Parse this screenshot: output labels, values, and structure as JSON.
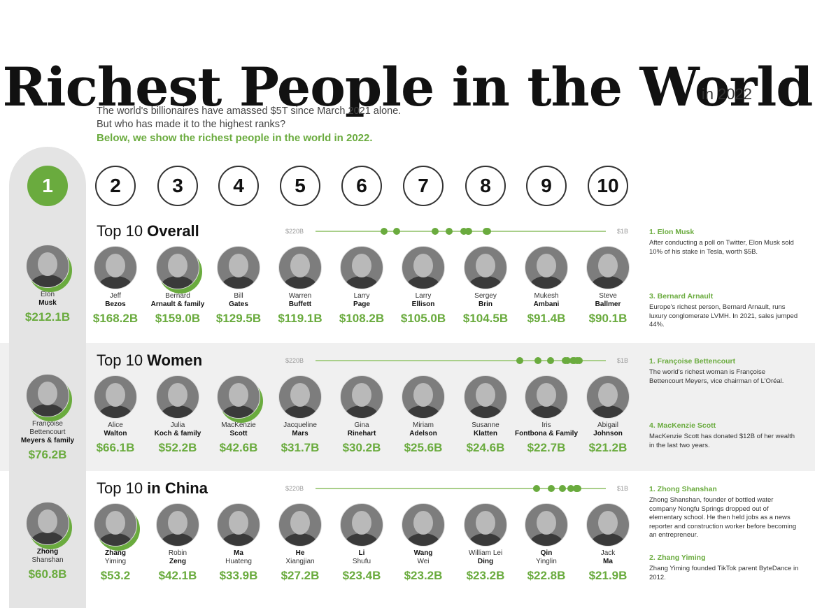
{
  "header": {
    "title": "Richest People in the World",
    "subtitle": "in 2022",
    "intro": [
      "The world's billionaires have amassed $5T since March 2021 alone.",
      "But who has made it to the highest ranks?"
    ],
    "intro_highlight": "Below, we show the richest people in the world in 2022."
  },
  "ranks": [
    "1",
    "2",
    "3",
    "4",
    "5",
    "6",
    "7",
    "8",
    "9",
    "10"
  ],
  "colors": {
    "accent": "#6aab3e",
    "band": "#f0f0f0",
    "pillar": "#e4e4e4",
    "text": "#111111"
  },
  "chart_data": [
    {
      "type": "scatter",
      "title_pre": "Top 10 ",
      "title_bold": "Overall",
      "scale_max_label": "$220B",
      "scale_min_label": "$1B",
      "xlim": [
        220,
        1
      ],
      "people": [
        {
          "first": "Elon",
          "last": "Musk",
          "worth_label": "$212.1B",
          "value": 212.1,
          "highlight": true
        },
        {
          "first": "Jeff",
          "last": "Bezos",
          "worth_label": "$168.2B",
          "value": 168.2
        },
        {
          "first": "Bernard",
          "last": "Arnault & family",
          "worth_label": "$159.0B",
          "value": 159.0,
          "highlight": true
        },
        {
          "first": "Bill",
          "last": "Gates",
          "worth_label": "$129.5B",
          "value": 129.5
        },
        {
          "first": "Warren",
          "last": "Buffett",
          "worth_label": "$119.1B",
          "value": 119.1
        },
        {
          "first": "Larry",
          "last": "Page",
          "worth_label": "$108.2B",
          "value": 108.2
        },
        {
          "first": "Larry",
          "last": "Ellison",
          "worth_label": "$105.0B",
          "value": 105.0
        },
        {
          "first": "Sergey",
          "last": "Brin",
          "worth_label": "$104.5B",
          "value": 104.5
        },
        {
          "first": "Mukesh",
          "last": "Ambani",
          "worth_label": "$91.4B",
          "value": 91.4
        },
        {
          "first": "Steve",
          "last": "Ballmer",
          "worth_label": "$90.1B",
          "value": 90.1
        }
      ],
      "notes": [
        {
          "title": "1. Elon Musk",
          "body": "After conducting a poll on Twitter, Elon Musk sold 10% of his stake in Tesla, worth $5B."
        },
        {
          "title": "3. Bernard Arnault",
          "body": "Europe's richest person, Bernard Arnault, runs luxury conglomerate LVMH. In 2021, sales jumped 44%."
        }
      ]
    },
    {
      "type": "scatter",
      "title_pre": "Top 10 ",
      "title_bold": "Women",
      "scale_max_label": "$220B",
      "scale_min_label": "$1B",
      "xlim": [
        220,
        1
      ],
      "people": [
        {
          "first": "Françoise Bettencourt",
          "last": "Meyers & family",
          "worth_label": "$76.2B",
          "value": 76.2,
          "highlight": true
        },
        {
          "first": "Alice",
          "last": "Walton",
          "worth_label": "$66.1B",
          "value": 66.1
        },
        {
          "first": "Julia",
          "last": "Koch & family",
          "worth_label": "$52.2B",
          "value": 52.2
        },
        {
          "first": "MacKenzie",
          "last": "Scott",
          "worth_label": "$42.6B",
          "value": 42.6,
          "highlight": true
        },
        {
          "first": "Jacqueline",
          "last": "Mars",
          "worth_label": "$31.7B",
          "value": 31.7
        },
        {
          "first": "Gina",
          "last": "Rinehart",
          "worth_label": "$30.2B",
          "value": 30.2
        },
        {
          "first": "Miriam",
          "last": "Adelson",
          "worth_label": "$25.6B",
          "value": 25.6
        },
        {
          "first": "Susanne",
          "last": "Klatten",
          "worth_label": "$24.6B",
          "value": 24.6
        },
        {
          "first": "Iris",
          "last": "Fontbona & Family",
          "worth_label": "$22.7B",
          "value": 22.7
        },
        {
          "first": "Abigail",
          "last": "Johnson",
          "worth_label": "$21.2B",
          "value": 21.2
        }
      ],
      "notes": [
        {
          "title": "1. Françoise Bettencourt",
          "body": "The world's richest woman is Françoise Bettencourt Meyers, vice chairman of L'Oréal."
        },
        {
          "title": "4. MacKenzie Scott",
          "body": "MacKenzie Scott has donated $12B of her wealth in the last two years."
        }
      ]
    },
    {
      "type": "scatter",
      "title_pre": "Top 10 ",
      "title_bold": "in China",
      "scale_max_label": "$220B",
      "scale_min_label": "$1B",
      "xlim": [
        220,
        1
      ],
      "people": [
        {
          "first": "Zhong",
          "last": "Shanshan",
          "worth_label": "$60.8B",
          "value": 60.8,
          "highlight": true,
          "bold_first": true
        },
        {
          "first": "Zhang",
          "last": "Yiming",
          "worth_label": "$53.2",
          "value": 53.2,
          "highlight": true,
          "bold_first": true
        },
        {
          "first": "Robin",
          "last": "Zeng",
          "worth_label": "$42.1B",
          "value": 42.1
        },
        {
          "first": "Ma",
          "last": "Huateng",
          "worth_label": "$33.9B",
          "value": 33.9,
          "bold_first": true
        },
        {
          "first": "He",
          "last": "Xiangjian",
          "worth_label": "$27.2B",
          "value": 27.2,
          "bold_first": true
        },
        {
          "first": "Li",
          "last": "Shufu",
          "worth_label": "$23.4B",
          "value": 23.4,
          "bold_first": true
        },
        {
          "first": "Wang",
          "last": "Wei",
          "worth_label": "$23.2B",
          "value": 23.2,
          "bold_first": true
        },
        {
          "first": "William Lei",
          "last": "Ding",
          "worth_label": "$23.2B",
          "value": 23.2
        },
        {
          "first": "Qin",
          "last": "Yinglin",
          "worth_label": "$22.8B",
          "value": 22.8,
          "bold_first": true
        },
        {
          "first": "Jack",
          "last": "Ma",
          "worth_label": "$21.9B",
          "value": 21.9
        }
      ],
      "notes": [
        {
          "title": "1. Zhong Shanshan",
          "body": "Zhong Shanshan, founder of bottled water company Nongfu Springs dropped out of elementary school. He then held jobs as a news reporter and construction worker before becoming an entrepreneur."
        },
        {
          "title": "2. Zhang Yiming",
          "body": "Zhang Yiming founded TikTok parent ByteDance in 2012."
        }
      ]
    }
  ]
}
